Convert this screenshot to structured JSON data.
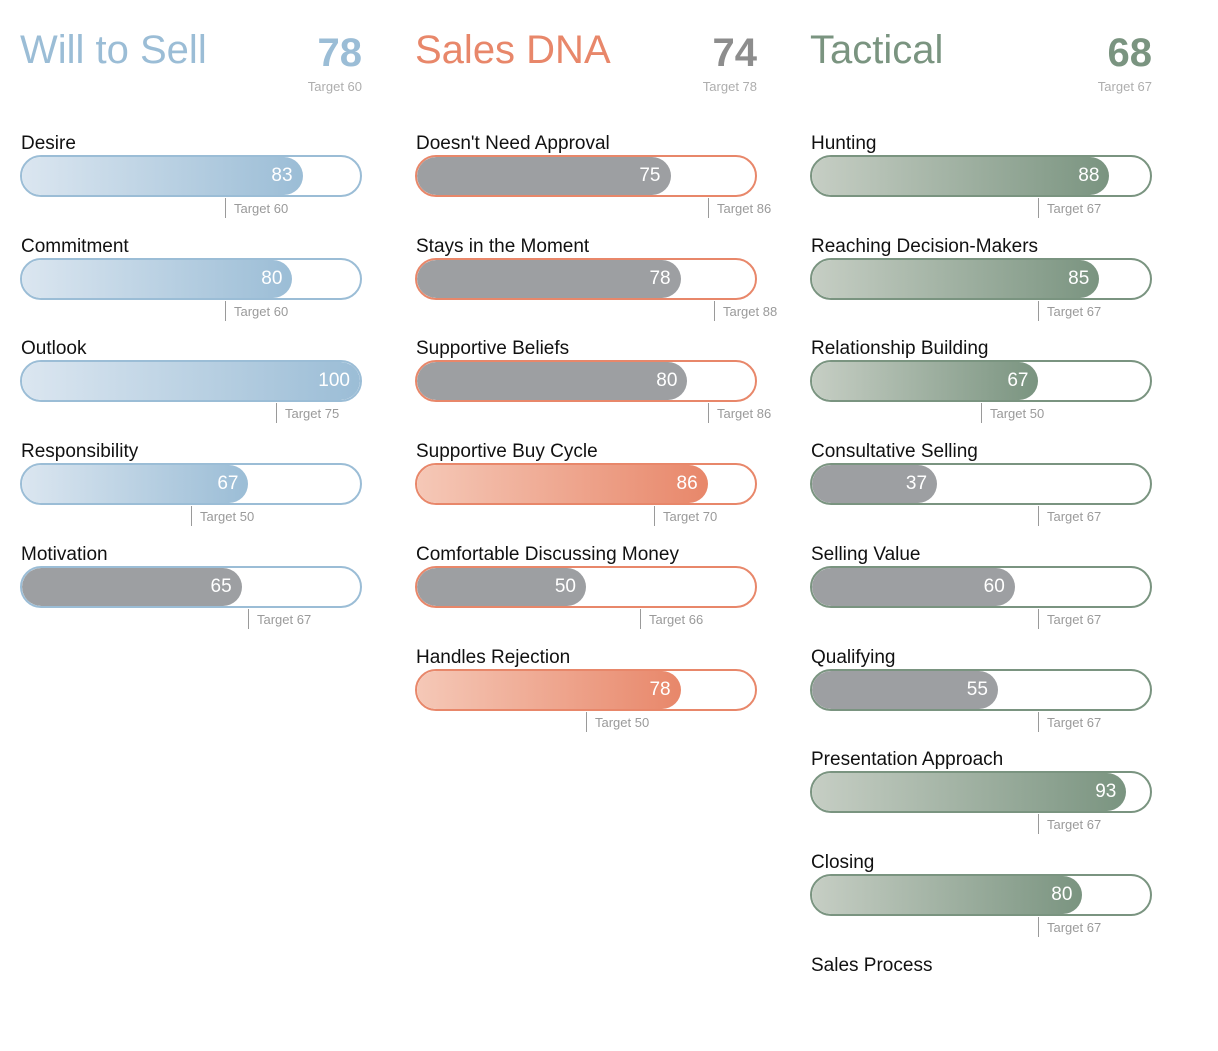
{
  "colors": {
    "will_to_sell": "#9bbdd6",
    "sales_dna": "#e8876a",
    "tactical": "#7a9480",
    "below_target": "#9d9fa2"
  },
  "chart_data": [
    {
      "type": "bar",
      "title": "Will to Sell",
      "score": "78",
      "target_label": "Target 60",
      "xlim": [
        0,
        100
      ],
      "color": "#9bbdd6",
      "categories": [
        "Desire",
        "Commitment",
        "Outlook",
        "Responsibility",
        "Motivation"
      ],
      "values": [
        83,
        80,
        100,
        67,
        65
      ],
      "targets": [
        60,
        60,
        75,
        50,
        67
      ],
      "target_labels": [
        "Target 60",
        "Target 60",
        "Target 75",
        "Target 50",
        "Target 67"
      ]
    },
    {
      "type": "bar",
      "title": "Sales DNA",
      "score": "74",
      "target_label": "Target 78",
      "xlim": [
        0,
        100
      ],
      "color": "#e8876a",
      "categories": [
        "Doesn't Need Approval",
        "Stays in the Moment",
        "Supportive Beliefs",
        "Supportive Buy Cycle",
        "Comfortable Discussing Money",
        "Handles Rejection"
      ],
      "values": [
        75,
        78,
        80,
        86,
        50,
        78
      ],
      "targets": [
        86,
        88,
        86,
        70,
        66,
        50
      ],
      "target_labels": [
        "Target 86",
        "Target 88",
        "Target 86",
        "Target 70",
        "Target 66",
        "Target 50"
      ]
    },
    {
      "type": "bar",
      "title": "Tactical",
      "score": "68",
      "target_label": "Target 67",
      "xlim": [
        0,
        100
      ],
      "color": "#7a9480",
      "categories": [
        "Hunting",
        "Reaching Decision-Makers",
        "Relationship Building",
        "Consultative Selling",
        "Selling Value",
        "Qualifying",
        "Presentation Approach",
        "Closing",
        "Sales Process"
      ],
      "values": [
        88,
        85,
        67,
        37,
        60,
        55,
        93,
        80,
        null
      ],
      "targets": [
        67,
        67,
        50,
        67,
        67,
        67,
        67,
        67,
        null
      ],
      "target_labels": [
        "Target 67",
        "Target 67",
        "Target 50",
        "Target 67",
        "Target 67",
        "Target 67",
        "Target 67",
        "Target 67",
        ""
      ]
    }
  ]
}
